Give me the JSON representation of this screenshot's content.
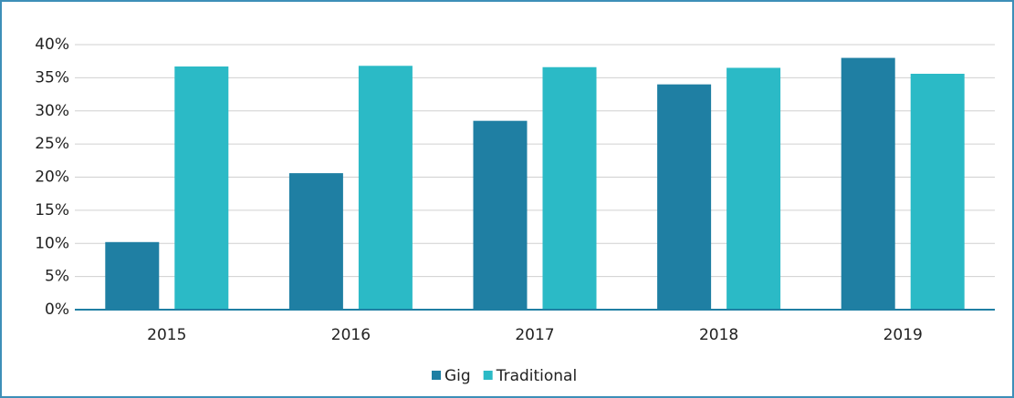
{
  "chart_data": {
    "type": "bar",
    "categories": [
      "2015",
      "2016",
      "2017",
      "2018",
      "2019"
    ],
    "series": [
      {
        "name": "Gig",
        "color": "#1f7fa3",
        "values": [
          10.2,
          20.6,
          28.5,
          34.0,
          38.0
        ]
      },
      {
        "name": "Traditional",
        "color": "#2bbac6",
        "values": [
          36.7,
          36.8,
          36.6,
          36.5,
          35.6
        ]
      }
    ],
    "ylim": [
      0,
      40
    ],
    "yticks": [
      {
        "value": 0,
        "label": "0%"
      },
      {
        "value": 5,
        "label": "5%"
      },
      {
        "value": 10,
        "label": "10%"
      },
      {
        "value": 15,
        "label": "15%"
      },
      {
        "value": 20,
        "label": "20%"
      },
      {
        "value": 25,
        "label": "25%"
      },
      {
        "value": 30,
        "label": "30%"
      },
      {
        "value": 35,
        "label": "35%"
      },
      {
        "value": 40,
        "label": "40%"
      }
    ],
    "grid": true,
    "legend": "bottom"
  }
}
